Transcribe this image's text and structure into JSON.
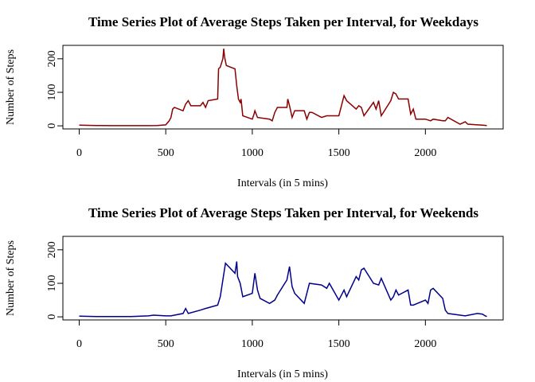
{
  "chart_data": [
    {
      "type": "line",
      "title": "Time Series Plot of Average Steps Taken per Interval, for Weekdays",
      "x_label": "Intervals (in 5 mins)",
      "y_label": "Number of Steps",
      "xlim": [
        -94.2,
        2449.2
      ],
      "ylim": [
        -9.2,
        240
      ],
      "xticks": [
        0,
        500,
        1000,
        1500,
        2000
      ],
      "yticks": [
        0,
        100,
        200
      ],
      "series": [
        {
          "name": "Weekdays",
          "color": "#8b0000",
          "x": [
            0,
            100,
            200,
            300,
            400,
            450,
            500,
            520,
            530,
            540,
            550,
            600,
            615,
            630,
            645,
            700,
            715,
            730,
            745,
            800,
            805,
            815,
            830,
            835,
            840,
            850,
            900,
            910,
            915,
            920,
            930,
            935,
            945,
            1000,
            1010,
            1015,
            1030,
            1100,
            1115,
            1130,
            1145,
            1200,
            1205,
            1215,
            1230,
            1245,
            1300,
            1315,
            1330,
            1345,
            1400,
            1430,
            1500,
            1530,
            1545,
            1600,
            1615,
            1630,
            1645,
            1700,
            1715,
            1730,
            1745,
            1800,
            1815,
            1830,
            1845,
            1900,
            1915,
            1930,
            1945,
            2000,
            2030,
            2045,
            2100,
            2115,
            2130,
            2200,
            2230,
            2245,
            2300,
            2330,
            2355
          ],
          "values": [
            2,
            1,
            0.5,
            0.5,
            0.5,
            1,
            3,
            15,
            25,
            50,
            55,
            45,
            65,
            75,
            60,
            60,
            70,
            55,
            75,
            80,
            170,
            175,
            200,
            230,
            205,
            180,
            170,
            120,
            100,
            80,
            70,
            80,
            30,
            20,
            35,
            45,
            25,
            20,
            15,
            40,
            55,
            55,
            80,
            60,
            25,
            45,
            45,
            20,
            40,
            40,
            25,
            30,
            30,
            90,
            75,
            50,
            60,
            55,
            30,
            70,
            50,
            75,
            30,
            75,
            100,
            95,
            80,
            80,
            35,
            50,
            20,
            20,
            15,
            20,
            15,
            15,
            25,
            5,
            12,
            5,
            3,
            2,
            1
          ]
        }
      ]
    },
    {
      "type": "line",
      "title": "Time Series Plot of Average Steps Taken per Interval, for Weekends",
      "x_label": "Intervals (in 5 mins)",
      "y_label": "Number of Steps",
      "xlim": [
        -94.2,
        2449.2
      ],
      "ylim": [
        -9.2,
        240
      ],
      "xticks": [
        0,
        500,
        1000,
        1500,
        2000
      ],
      "yticks": [
        0,
        100,
        200
      ],
      "series": [
        {
          "name": "Weekends",
          "color": "#00008b",
          "x": [
            0,
            100,
            200,
            300,
            400,
            430,
            500,
            530,
            600,
            615,
            630,
            700,
            730,
            800,
            815,
            830,
            845,
            900,
            910,
            915,
            930,
            945,
            1000,
            1015,
            1030,
            1045,
            1100,
            1130,
            1145,
            1200,
            1215,
            1230,
            1245,
            1300,
            1330,
            1400,
            1430,
            1445,
            1500,
            1530,
            1545,
            1600,
            1615,
            1630,
            1645,
            1700,
            1730,
            1745,
            1800,
            1815,
            1830,
            1845,
            1900,
            1915,
            1930,
            2000,
            2015,
            2030,
            2045,
            2100,
            2115,
            2130,
            2200,
            2230,
            2300,
            2330,
            2345,
            2355
          ],
          "values": [
            2,
            1,
            1,
            1,
            3,
            5,
            3,
            3,
            10,
            25,
            10,
            20,
            25,
            35,
            60,
            110,
            160,
            130,
            165,
            120,
            100,
            60,
            70,
            130,
            80,
            55,
            40,
            50,
            65,
            110,
            150,
            90,
            70,
            40,
            100,
            95,
            85,
            100,
            50,
            80,
            60,
            120,
            110,
            140,
            145,
            100,
            95,
            115,
            50,
            60,
            80,
            65,
            80,
            35,
            35,
            50,
            40,
            80,
            85,
            55,
            20,
            10,
            5,
            3,
            10,
            8,
            3,
            1
          ]
        }
      ]
    }
  ]
}
